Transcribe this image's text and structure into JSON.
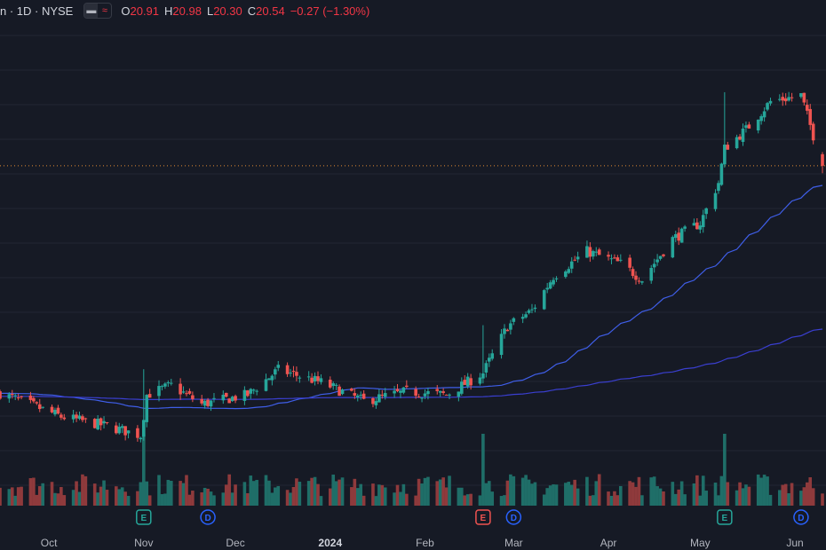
{
  "header": {
    "symbol": "n · 1D · NYSE",
    "eye_icon": "eye-icon",
    "wave_icon": "wave-icon",
    "open_label": "O",
    "open_value": "20.91",
    "high_label": "H",
    "high_value": "20.98",
    "low_label": "L",
    "low_value": "20.30",
    "close_label": "C",
    "close_value": "20.54",
    "change": "−0.27 (−1.30%)"
  },
  "colors": {
    "background": "#161a25",
    "up": "#26a69a",
    "down": "#ef5350",
    "up_volume": "#1f6e68",
    "down_volume": "#8f3a3c",
    "ma_fast": "#3f5ee8",
    "ma_slow": "#3a3fd0",
    "price_line": "#e08a33",
    "grid": "#222633"
  },
  "chart_data": {
    "type": "candlestick",
    "interval": "1D",
    "exchange": "NYSE",
    "x_axis_labels": [
      "Oct",
      "Nov",
      "Dec",
      "2024",
      "Feb",
      "Mar",
      "Apr",
      "May",
      "Jun"
    ],
    "date_range": [
      "2023-09-15",
      "2024-06-10"
    ],
    "ylim": [
      10.5,
      25.0
    ],
    "grid": true,
    "last_ohlc": {
      "open": 20.91,
      "high": 20.98,
      "low": 20.3,
      "close": 20.54
    },
    "current_price_line": 20.54,
    "anchors": [
      {
        "date": "2023-09-15",
        "close": 13.25
      },
      {
        "date": "2023-09-22",
        "close": 13.0
      },
      {
        "date": "2023-10-05",
        "close": 12.5
      },
      {
        "date": "2023-10-20",
        "close": 12.2
      },
      {
        "date": "2023-10-31",
        "close": 11.9
      },
      {
        "date": "2023-11-02",
        "close": 13.2
      },
      {
        "date": "2023-11-10",
        "close": 13.5
      },
      {
        "date": "2023-11-20",
        "close": 12.9
      },
      {
        "date": "2023-12-05",
        "close": 13.2
      },
      {
        "date": "2023-12-15",
        "close": 14.0
      },
      {
        "date": "2023-12-29",
        "close": 13.6
      },
      {
        "date": "2024-01-12",
        "close": 13.0
      },
      {
        "date": "2024-01-26",
        "close": 13.3
      },
      {
        "date": "2024-02-08",
        "close": 13.2
      },
      {
        "date": "2024-02-20",
        "close": 13.9
      },
      {
        "date": "2024-02-28",
        "close": 15.4
      },
      {
        "date": "2024-03-07",
        "close": 15.9
      },
      {
        "date": "2024-03-14",
        "close": 17.0
      },
      {
        "date": "2024-03-25",
        "close": 17.8
      },
      {
        "date": "2024-04-05",
        "close": 17.4
      },
      {
        "date": "2024-04-12",
        "close": 16.9
      },
      {
        "date": "2024-04-22",
        "close": 18.2
      },
      {
        "date": "2024-05-01",
        "close": 18.7
      },
      {
        "date": "2024-05-07",
        "close": 20.0
      },
      {
        "date": "2024-05-09",
        "close": 21.1
      },
      {
        "date": "2024-05-16",
        "close": 21.7
      },
      {
        "date": "2024-05-24",
        "close": 22.6
      },
      {
        "date": "2024-06-03",
        "close": 22.8
      },
      {
        "date": "2024-06-10",
        "close": 20.54
      }
    ],
    "event_markers": [
      {
        "type": "E",
        "date": "2023-11-01",
        "label": "E",
        "color": "#26a69a"
      },
      {
        "type": "D",
        "date": "2023-11-22",
        "label": "D",
        "color": "#2962ff"
      },
      {
        "type": "E",
        "date": "2024-02-20",
        "label": "E",
        "color": "#ef5350"
      },
      {
        "type": "D",
        "date": "2024-03-01",
        "label": "D",
        "color": "#2962ff"
      },
      {
        "type": "E",
        "date": "2024-05-09",
        "label": "E",
        "color": "#26a69a"
      },
      {
        "type": "D",
        "date": "2024-06-03",
        "label": "D",
        "color": "#2962ff"
      }
    ],
    "moving_averages": [
      {
        "period": 50,
        "color": "#3f5ee8"
      },
      {
        "period": 200,
        "color": "#3a3fd0"
      }
    ]
  }
}
